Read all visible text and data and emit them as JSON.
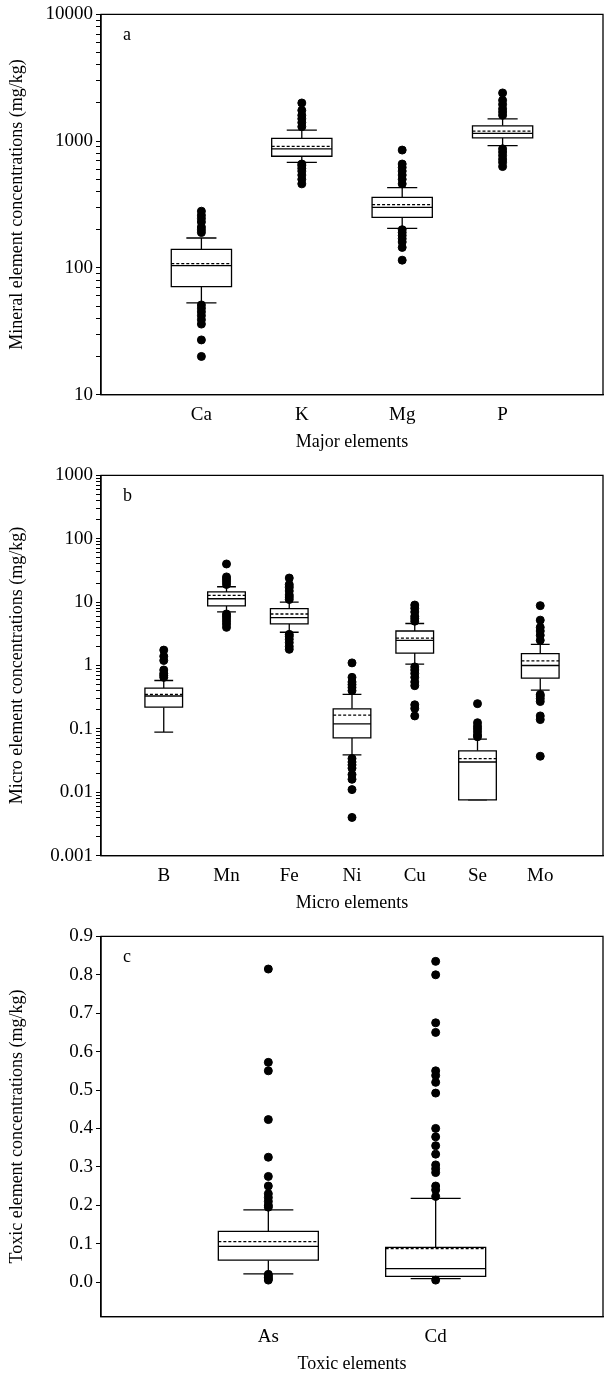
{
  "chart_data": [
    {
      "type": "box",
      "xlabel": "Major elements",
      "ylabel": "Mineral element concentrations (mg/kg)",
      "annotations": [
        "a"
      ],
      "categories": [
        "Ca",
        "K",
        "Mg",
        "P"
      ],
      "log": true,
      "ylim": [
        10,
        10000
      ],
      "yticks": [
        10,
        {
          "value": 20,
          "label": null
        },
        {
          "value": 30,
          "label": null
        },
        {
          "value": 40,
          "label": null
        },
        {
          "value": 50,
          "label": null
        },
        {
          "value": 60,
          "label": null
        },
        {
          "value": 70,
          "label": null
        },
        {
          "value": 80,
          "label": null
        },
        {
          "value": 90,
          "label": null
        },
        100,
        {
          "value": 200,
          "label": null
        },
        {
          "value": 300,
          "label": null
        },
        {
          "value": 400,
          "label": null
        },
        {
          "value": 500,
          "label": null
        },
        {
          "value": 600,
          "label": null
        },
        {
          "value": 700,
          "label": null
        },
        {
          "value": 800,
          "label": null
        },
        {
          "value": 900,
          "label": null
        },
        1000,
        {
          "value": 2000,
          "label": null
        },
        {
          "value": 3000,
          "label": null
        },
        {
          "value": 4000,
          "label": null
        },
        {
          "value": 5000,
          "label": null
        },
        {
          "value": 6000,
          "label": null
        },
        {
          "value": 7000,
          "label": null
        },
        {
          "value": 8000,
          "label": null
        },
        {
          "value": 9000,
          "label": null
        },
        10000
      ],
      "grid": false,
      "legend": false,
      "marker": "circle",
      "boxes": [
        {
          "low": 53,
          "q1": 71,
          "median": 104,
          "q3": 140,
          "high": 172,
          "mean": 108,
          "outliers": [
            20,
            27,
            36,
            39,
            42,
            45,
            48,
            51,
            190,
            200,
            210,
            230,
            245,
            260,
            280
          ]
        },
        {
          "low": 680,
          "q1": 760,
          "median": 870,
          "q3": 1050,
          "high": 1220,
          "mean": 910,
          "outliers": [
            460,
            500,
            540,
            580,
            610,
            640,
            660,
            1300,
            1400,
            1500,
            1600,
            1750,
            2000
          ]
        },
        {
          "low": 205,
          "q1": 250,
          "median": 300,
          "q3": 360,
          "high": 430,
          "mean": 315,
          "outliers": [
            115,
            145,
            160,
            170,
            180,
            190,
            200,
            460,
            500,
            540,
            580,
            620,
            660,
            850
          ]
        },
        {
          "low": 920,
          "q1": 1060,
          "median": 1150,
          "q3": 1320,
          "high": 1500,
          "mean": 1200,
          "outliers": [
            630,
            680,
            720,
            770,
            820,
            870,
            1600,
            1700,
            1800,
            1950,
            2100,
            2400
          ]
        }
      ]
    },
    {
      "type": "box",
      "xlabel": "Micro elements",
      "ylabel": "Micro element concentrations (mg/kg)",
      "annotations": [
        "b"
      ],
      "categories": [
        "B",
        "Mn",
        "Fe",
        "Ni",
        "Cu",
        "Se",
        "Mo"
      ],
      "log": true,
      "ylim": [
        0.001,
        1000
      ],
      "yticks": [
        0.001,
        {
          "value": 0.002,
          "label": null
        },
        {
          "value": 0.003,
          "label": null
        },
        {
          "value": 0.004,
          "label": null
        },
        {
          "value": 0.005,
          "label": null
        },
        {
          "value": 0.006,
          "label": null
        },
        {
          "value": 0.007,
          "label": null
        },
        {
          "value": 0.008,
          "label": null
        },
        {
          "value": 0.009,
          "label": null
        },
        0.01,
        {
          "value": 0.02,
          "label": null
        },
        {
          "value": 0.03,
          "label": null
        },
        {
          "value": 0.04,
          "label": null
        },
        {
          "value": 0.05,
          "label": null
        },
        {
          "value": 0.06,
          "label": null
        },
        {
          "value": 0.07,
          "label": null
        },
        {
          "value": 0.08,
          "label": null
        },
        {
          "value": 0.09,
          "label": null
        },
        0.1,
        {
          "value": 0.2,
          "label": null
        },
        {
          "value": 0.3,
          "label": null
        },
        {
          "value": 0.4,
          "label": null
        },
        {
          "value": 0.5,
          "label": null
        },
        {
          "value": 0.6,
          "label": null
        },
        {
          "value": 0.7,
          "label": null
        },
        {
          "value": 0.8,
          "label": null
        },
        {
          "value": 0.9,
          "label": null
        },
        1,
        {
          "value": 2,
          "label": null
        },
        {
          "value": 3,
          "label": null
        },
        {
          "value": 4,
          "label": null
        },
        {
          "value": 5,
          "label": null
        },
        {
          "value": 6,
          "label": null
        },
        {
          "value": 7,
          "label": null
        },
        {
          "value": 8,
          "label": null
        },
        {
          "value": 9,
          "label": null
        },
        10,
        {
          "value": 20,
          "label": null
        },
        {
          "value": 30,
          "label": null
        },
        {
          "value": 40,
          "label": null
        },
        {
          "value": 50,
          "label": null
        },
        {
          "value": 60,
          "label": null
        },
        {
          "value": 70,
          "label": null
        },
        {
          "value": 80,
          "label": null
        },
        {
          "value": 90,
          "label": null
        },
        100,
        {
          "value": 200,
          "label": null
        },
        {
          "value": 300,
          "label": null
        },
        {
          "value": 400,
          "label": null
        },
        {
          "value": 500,
          "label": null
        },
        {
          "value": 600,
          "label": null
        },
        {
          "value": 700,
          "label": null
        },
        {
          "value": 800,
          "label": null
        },
        {
          "value": 900,
          "label": null
        },
        1000
      ],
      "grid": false,
      "legend": false,
      "marker": "circle",
      "boxes": [
        {
          "low": 0.089,
          "q1": 0.22,
          "median": 0.33,
          "q3": 0.44,
          "high": 0.58,
          "mean": 0.35,
          "outliers": [
            0.65,
            0.7,
            0.75,
            0.85,
            1.2,
            1.4,
            1.75
          ]
        },
        {
          "low": 7,
          "q1": 8.7,
          "median": 11.3,
          "q3": 14.5,
          "high": 17.5,
          "mean": 12.8,
          "outliers": [
            4,
            4.5,
            5,
            5.5,
            6,
            6.5,
            19,
            21,
            23,
            25,
            40
          ]
        },
        {
          "low": 3.35,
          "q1": 4.55,
          "median": 5.7,
          "q3": 7.9,
          "high": 10,
          "mean": 6.5,
          "outliers": [
            1.8,
            2,
            2.3,
            2.6,
            2.9,
            3.1,
            11,
            12,
            13,
            15,
            17,
            19,
            24
          ]
        },
        {
          "low": 0.039,
          "q1": 0.072,
          "median": 0.12,
          "q3": 0.207,
          "high": 0.35,
          "mean": 0.165,
          "outliers": [
            0.004,
            0.011,
            0.016,
            0.019,
            0.024,
            0.027,
            0.03,
            0.034,
            0.4,
            0.45,
            0.5,
            0.55,
            0.65,
            1.1
          ]
        },
        {
          "low": 1.05,
          "q1": 1.57,
          "median": 2.5,
          "q3": 3.5,
          "high": 4.6,
          "mean": 2.7,
          "outliers": [
            0.16,
            0.21,
            0.24,
            0.48,
            0.55,
            0.65,
            0.75,
            0.85,
            0.95,
            5,
            5.5,
            6,
            7,
            8,
            9
          ]
        },
        {
          "low": 0.0076,
          "q1": 0.0076,
          "median": 0.03,
          "q3": 0.045,
          "high": 0.069,
          "mean": 0.034,
          "outliers": [
            0.075,
            0.08,
            0.09,
            0.1,
            0.11,
            0.125,
            0.25
          ]
        },
        {
          "low": 0.41,
          "q1": 0.63,
          "median": 1,
          "q3": 1.54,
          "high": 2.15,
          "mean": 1.18,
          "outliers": [
            0.037,
            0.14,
            0.16,
            0.27,
            0.3,
            0.33,
            0.35,
            2.5,
            3,
            3.5,
            4,
            5.2,
            8.8
          ]
        }
      ]
    },
    {
      "type": "box",
      "xlabel": "Toxic elements",
      "ylabel": "Toxic element concentrations (mg/kg)",
      "annotations": [
        "c"
      ],
      "categories": [
        "As",
        "Cd"
      ],
      "ylim": [
        -0.09,
        0.9
      ],
      "yticks": [
        {
          "value": 0,
          "label": "0.0"
        },
        0.1,
        0.2,
        0.3,
        0.4,
        0.5,
        0.6,
        0.7,
        0.8,
        0.9
      ],
      "grid": false,
      "legend": false,
      "marker": "circle",
      "boxes": [
        {
          "low": 0.021,
          "q1": 0.057,
          "median": 0.093,
          "q3": 0.132,
          "high": 0.188,
          "mean": 0.105,
          "outliers": [
            0.005,
            0.008,
            0.012,
            0.016,
            0.02,
            0.195,
            0.2,
            0.21,
            0.22,
            0.23,
            0.25,
            0.275,
            0.325,
            0.423,
            0.55,
            0.572,
            0.815
          ]
        },
        {
          "low": 0.009,
          "q1": 0.015,
          "median": 0.035,
          "q3": 0.09,
          "high": 0.218,
          "mean": 0.087,
          "outliers": [
            0.005,
            0.223,
            0.24,
            0.25,
            0.285,
            0.295,
            0.305,
            0.333,
            0.355,
            0.378,
            0.4,
            0.492,
            0.52,
            0.538,
            0.55,
            0.65,
            0.675,
            0.8,
            0.835
          ]
        }
      ]
    }
  ]
}
